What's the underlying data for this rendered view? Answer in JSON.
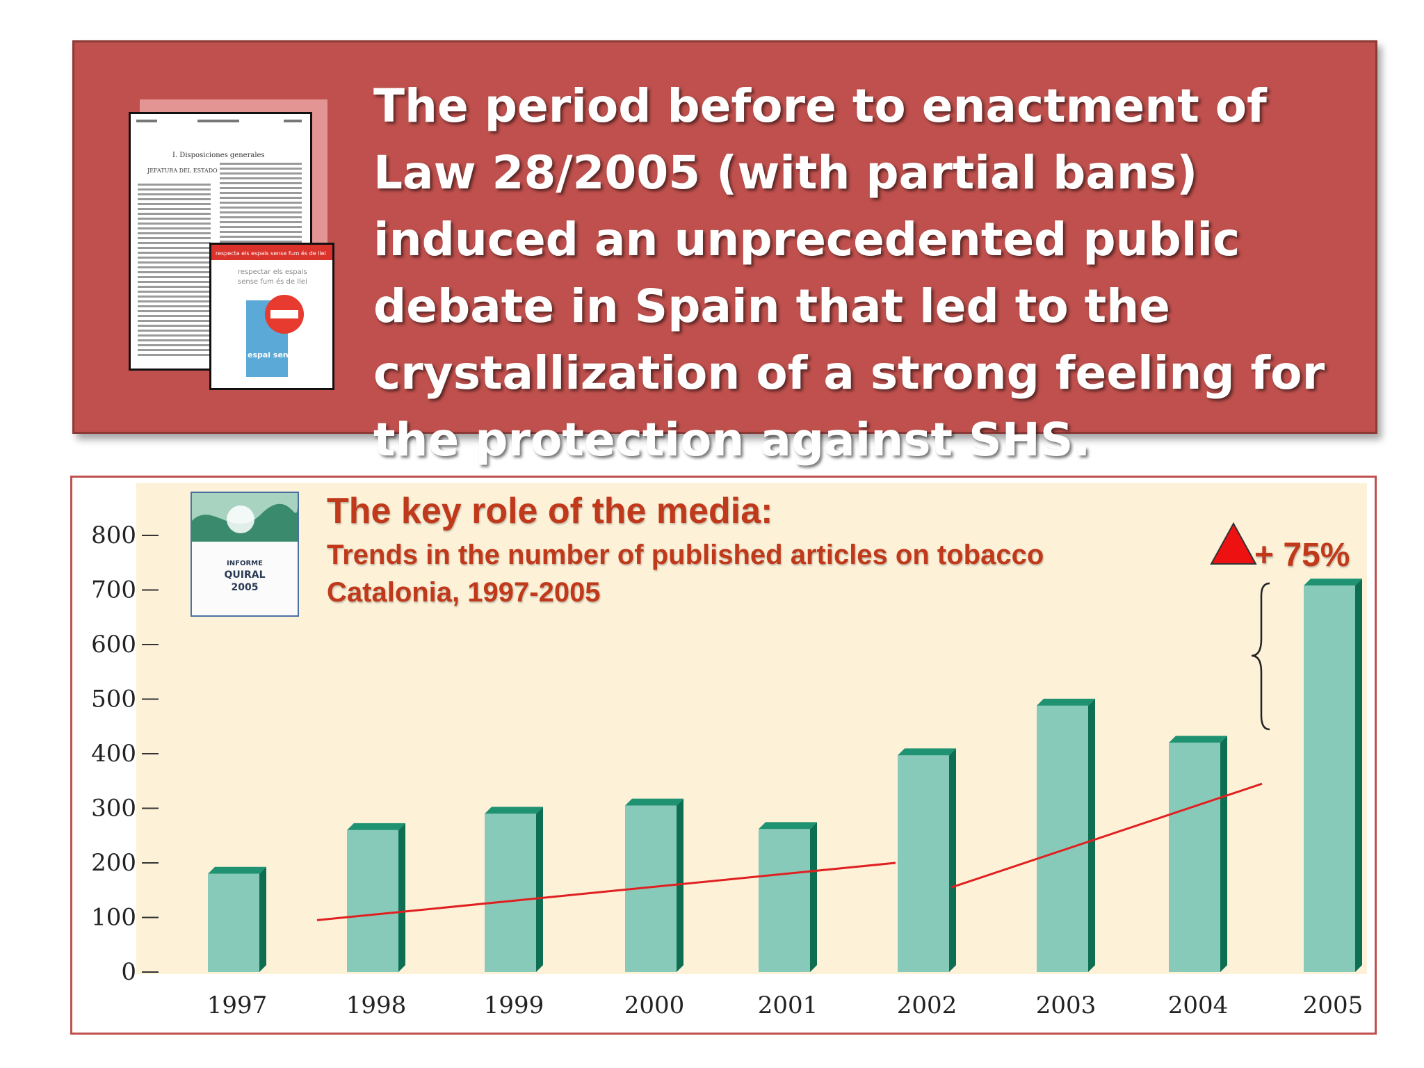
{
  "banner": {
    "text": "The period before to enactment of Law 28/2005  (with partial bans) induced an unprecedented public debate in Spain that led to the crystallization of a strong feeling for the protection against SHS.",
    "flyer_lines": [
      "respectar els espais",
      "sense fum és de llei"
    ],
    "flyer_brand": "espai sense fum",
    "flyer_header": "respecta els espais sense fum és de llei",
    "doc_heading": "I. Disposiciones generales",
    "doc_section": "JEFATURA DEL ESTADO"
  },
  "report_cover": {
    "lines": [
      "INFORME",
      "QUIRAL",
      "2005"
    ]
  },
  "annotations": {
    "increase_label": "+ 75%"
  },
  "colors": {
    "banner_bg": "#bf504d",
    "plot_bg": "#fdf1d8",
    "bar_face": "#88cab9",
    "bar_top": "#1f9272",
    "bar_side": "#0d6e52",
    "trend_line": "#e02020",
    "title_text": "#c0391b",
    "triangle": "#ee1111"
  },
  "chart_data": {
    "type": "bar",
    "title": "The key role of the media:",
    "subtitle": "Trends in the number of published articles on tobacco Catalonia, 1997-2005",
    "xlabel": "",
    "ylabel": "",
    "ylim": [
      0,
      800
    ],
    "yticks": [
      0,
      100,
      200,
      300,
      400,
      500,
      600,
      700,
      800
    ],
    "categories": [
      "1997",
      "1998",
      "1999",
      "2000",
      "2001",
      "2002",
      "2003",
      "2004",
      "2005"
    ],
    "values": [
      180,
      260,
      290,
      305,
      262,
      397,
      488,
      420,
      708
    ],
    "trend_lines": [
      {
        "x_start": "1997.6",
        "y_start": 95,
        "x_end": "2001.8",
        "y_end": 200
      },
      {
        "x_start": "2002.2",
        "y_start": 155,
        "x_end": "2004.5",
        "y_end": 345
      }
    ],
    "grid": false,
    "legend": "none"
  }
}
